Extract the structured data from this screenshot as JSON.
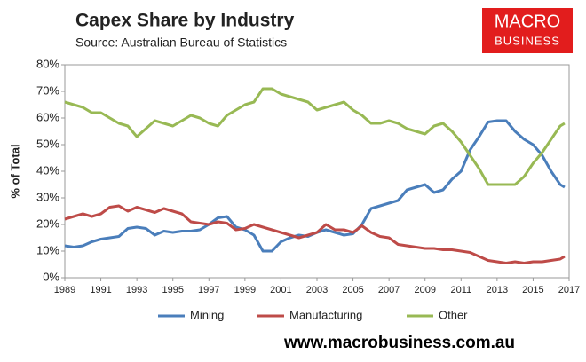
{
  "chart_data": {
    "type": "line",
    "title": "Capex Share by Industry",
    "subtitle": "Source: Australian Bureau of Statistics",
    "ylabel": "% of Total",
    "x": [
      1989,
      1989.5,
      1990,
      1990.5,
      1991,
      1991.5,
      1992,
      1992.5,
      1993,
      1993.5,
      1994,
      1994.5,
      1995,
      1995.5,
      1996,
      1996.5,
      1997,
      1997.5,
      1998,
      1998.5,
      1999,
      1999.5,
      2000,
      2000.5,
      2001,
      2001.5,
      2002,
      2002.5,
      2003,
      2003.5,
      2004,
      2004.5,
      2005,
      2005.5,
      2006,
      2006.5,
      2007,
      2007.5,
      2008,
      2008.5,
      2009,
      2009.5,
      2010,
      2010.5,
      2011,
      2011.5,
      2012,
      2012.5,
      2013,
      2013.5,
      2014,
      2014.5,
      2015,
      2015.5,
      2016,
      2016.5,
      2016.75
    ],
    "series": [
      {
        "name": "Mining",
        "color": "#4a7ebb",
        "values": [
          12,
          11.5,
          12,
          13.5,
          14.5,
          15,
          15.5,
          18.5,
          19,
          18.5,
          16,
          17.5,
          17,
          17.5,
          17.5,
          18,
          20,
          22.5,
          23,
          19,
          18,
          16,
          10,
          10,
          13.5,
          15,
          16,
          15.5,
          17,
          18,
          17,
          16,
          16.5,
          20,
          26,
          27,
          28,
          29,
          33,
          34,
          35,
          32,
          33,
          37,
          40,
          48,
          53,
          58.5,
          59,
          59,
          55,
          52,
          50,
          46,
          40,
          35,
          34
        ]
      },
      {
        "name": "Manufacturing",
        "color": "#be4b48",
        "values": [
          22,
          23,
          24,
          23,
          24,
          26.5,
          27,
          25,
          26.5,
          25.5,
          24.5,
          26,
          25,
          24,
          21,
          20.5,
          20,
          21,
          20.5,
          18,
          18.5,
          20,
          19,
          18,
          17,
          16,
          15,
          16,
          17,
          20,
          18,
          18,
          17,
          19.5,
          17,
          15.5,
          15,
          12.5,
          12,
          11.5,
          11,
          11,
          10.5,
          10.5,
          10,
          9.5,
          8,
          6.5,
          6,
          5.5,
          6,
          5.5,
          6,
          6,
          6.5,
          7,
          8
        ]
      },
      {
        "name": "Other",
        "color": "#98b954",
        "values": [
          66,
          65,
          64,
          62,
          62,
          60,
          58,
          57,
          53,
          56,
          59,
          58,
          57,
          59,
          61,
          60,
          58,
          57,
          61,
          63,
          65,
          66,
          71,
          71,
          69,
          68,
          67,
          66,
          63,
          64,
          65,
          66,
          63,
          61,
          58,
          58,
          59,
          58,
          56,
          55,
          54,
          57,
          58,
          55,
          51,
          46,
          41,
          35,
          35,
          35,
          35,
          38,
          43,
          47,
          52,
          57,
          58
        ]
      }
    ],
    "xlim": [
      1989,
      2017
    ],
    "xticks": [
      1989,
      1991,
      1993,
      1995,
      1997,
      1999,
      2001,
      2003,
      2005,
      2007,
      2009,
      2011,
      2013,
      2015,
      2017
    ],
    "ylim": [
      0,
      80
    ],
    "yticks": [
      {
        "value": 0,
        "label": "0%"
      },
      {
        "value": 10,
        "label": "10%"
      },
      {
        "value": 20,
        "label": "20%"
      },
      {
        "value": 30,
        "label": "30%"
      },
      {
        "value": 40,
        "label": "40%"
      },
      {
        "value": 50,
        "label": "50%"
      },
      {
        "value": 60,
        "label": "60%"
      },
      {
        "value": 70,
        "label": "70%"
      },
      {
        "value": 80,
        "label": "80%"
      }
    ],
    "grid": false,
    "legend": "bottom"
  },
  "branding": {
    "logo_lines": [
      "MACRO",
      "BUSINESS"
    ],
    "website": "www.macrobusiness.com.au"
  }
}
